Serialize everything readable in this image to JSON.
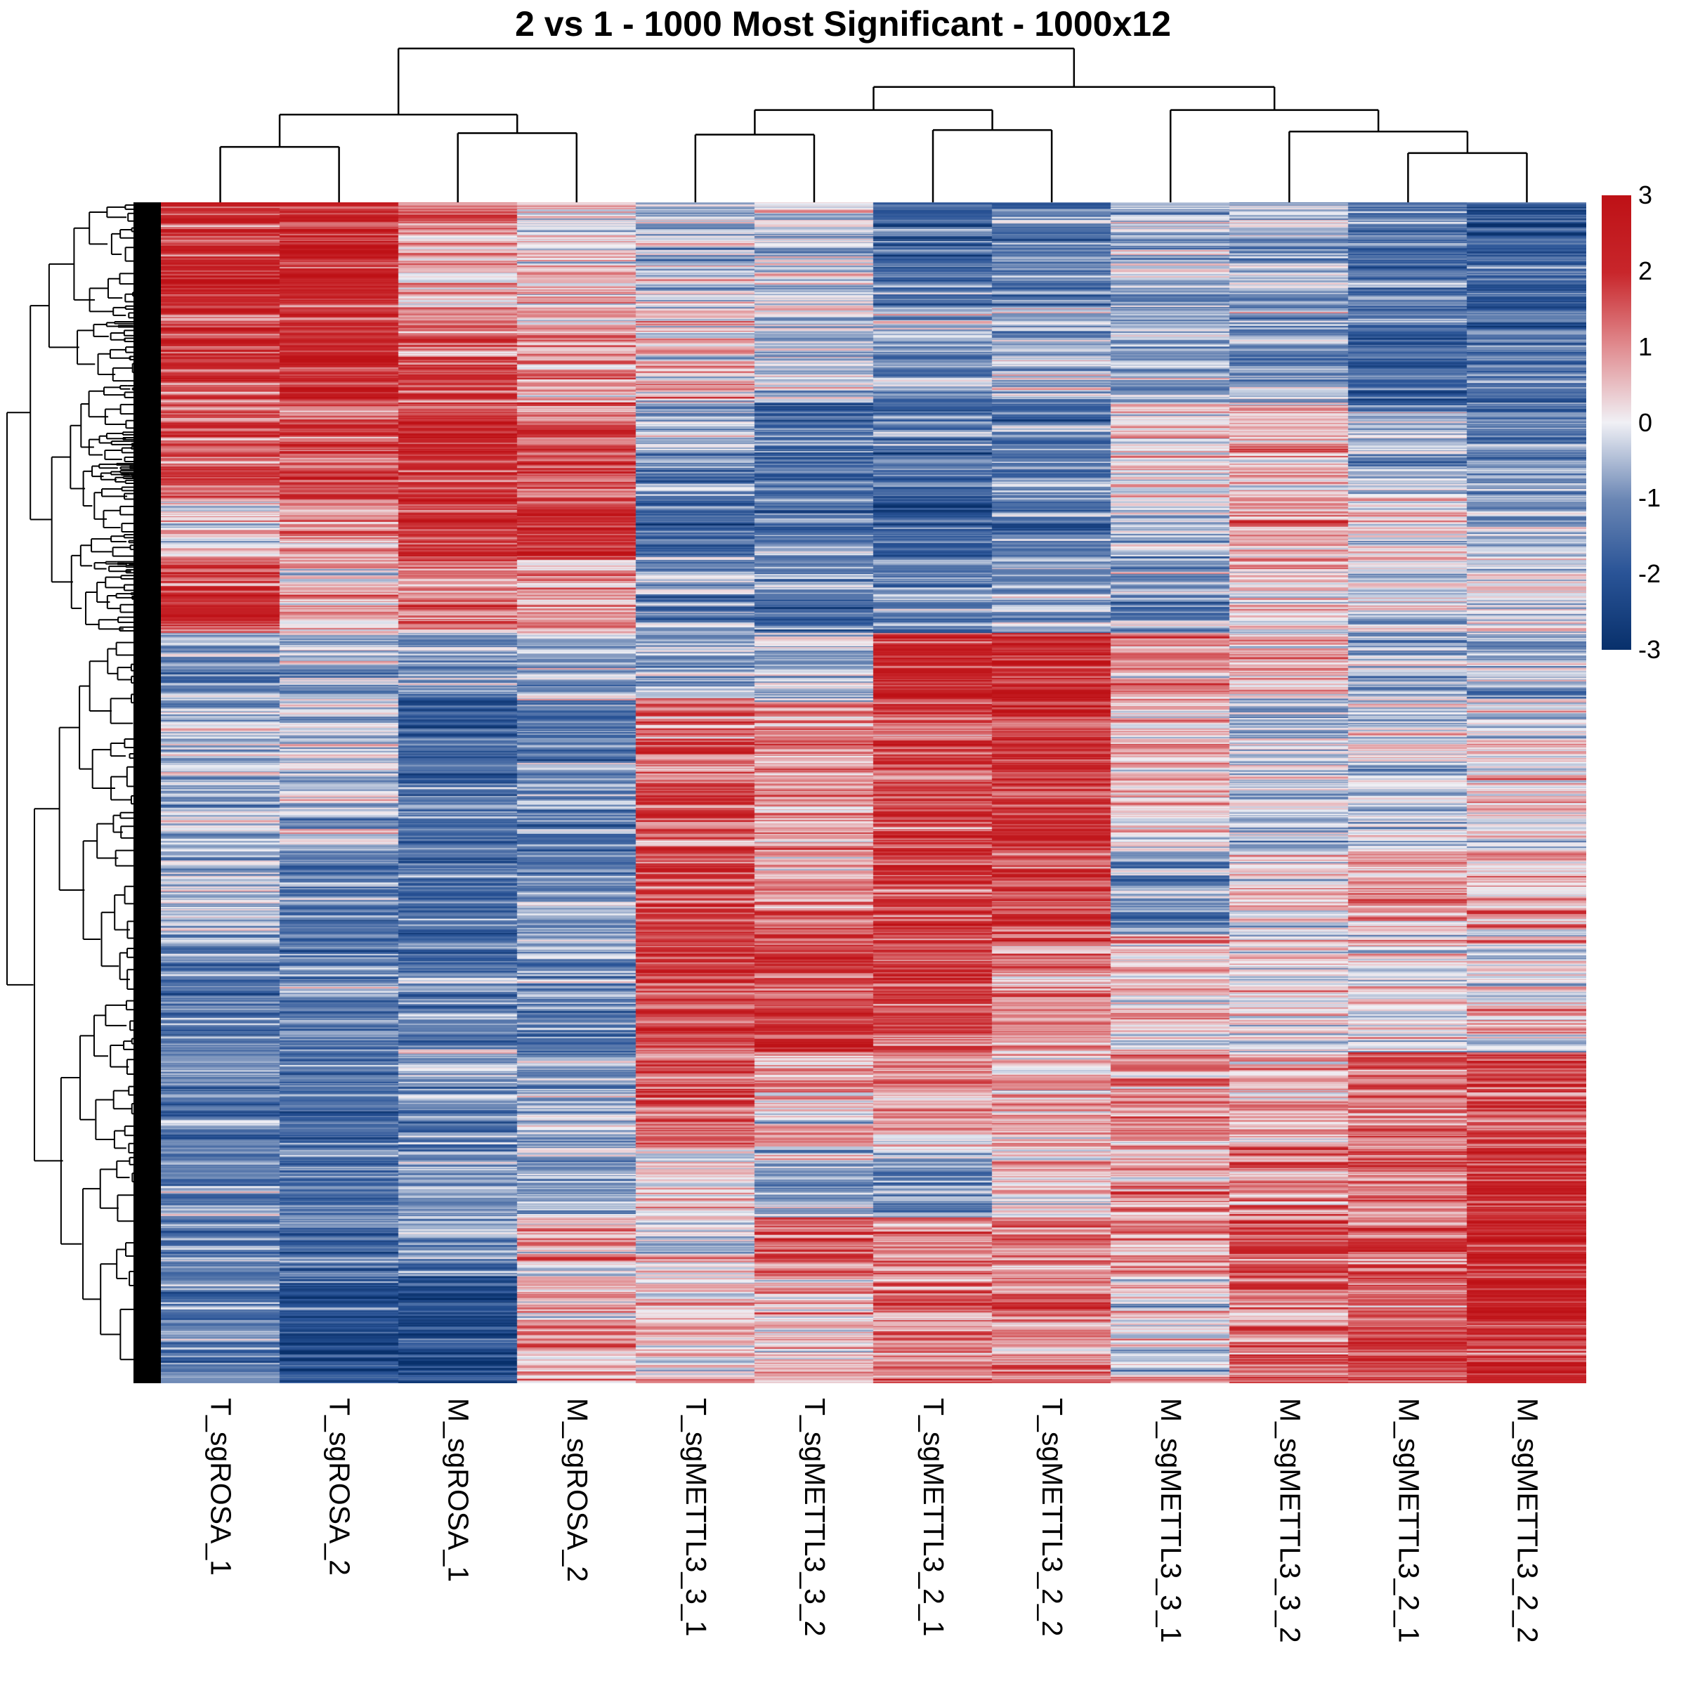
{
  "chart_data": {
    "type": "heatmap",
    "title": "2 vs 1 - 1000 Most Significant - 1000x12",
    "n_rows": 1000,
    "n_cols": 12,
    "columns": [
      "T_sgROSA_1",
      "T_sgROSA_2",
      "M_sgROSA_1",
      "M_sgROSA_2",
      "T_sgMETTL3_3_1",
      "T_sgMETTL3_3_2",
      "T_sgMETTL3_2_1",
      "T_sgMETTL3_2_2",
      "M_sgMETTL3_3_1",
      "M_sgMETTL3_3_2",
      "M_sgMETTL3_2_1",
      "M_sgMETTL3_2_2"
    ],
    "row_labels_shown": false,
    "colorbar": {
      "min": -3,
      "max": 3,
      "ticks": [
        3,
        2,
        1,
        0,
        -1,
        -2,
        -3
      ],
      "colors": {
        "low": "#08306B",
        "mid_low": "#2E569A",
        "mid": "#F0F0F5",
        "mid_high": "#D45A5F",
        "high": "#C0141A"
      }
    },
    "row_blocks_description": "Approximate mean z-score per column within row blocks (row fraction ranges, top to bottom)",
    "row_blocks": [
      {
        "rows": [
          0,
          0.09
        ],
        "means": [
          2.0,
          2.2,
          0.6,
          0.3,
          -0.4,
          -0.1,
          -1.6,
          -1.2,
          -0.6,
          -0.8,
          -1.2,
          -1.8
        ]
      },
      {
        "rows": [
          0.09,
          0.17
        ],
        "means": [
          1.9,
          2.2,
          1.4,
          0.7,
          0.6,
          -0.3,
          -0.6,
          -0.4,
          -0.7,
          -0.9,
          -1.4,
          -1.5
        ]
      },
      {
        "rows": [
          0.17,
          0.25
        ],
        "means": [
          1.6,
          1.8,
          2.2,
          1.5,
          -0.9,
          -1.6,
          -1.5,
          -1.2,
          0.2,
          0.4,
          -0.7,
          -1.0
        ]
      },
      {
        "rows": [
          0.25,
          0.3
        ],
        "means": [
          0.4,
          1.0,
          2.0,
          2.0,
          -1.5,
          -1.3,
          -1.8,
          -1.4,
          -0.3,
          0.8,
          0.2,
          -0.5
        ]
      },
      {
        "rows": [
          0.3,
          0.365
        ],
        "means": [
          1.9,
          0.6,
          1.2,
          0.8,
          -0.8,
          -1.4,
          -1.2,
          -0.9,
          -1.0,
          0.3,
          0.1,
          -0.2
        ]
      },
      {
        "rows": [
          0.365,
          0.42
        ],
        "means": [
          -0.8,
          -0.6,
          -0.8,
          -0.8,
          -0.6,
          -0.3,
          2.3,
          2.4,
          1.0,
          0.6,
          -0.6,
          -0.7
        ]
      },
      {
        "rows": [
          0.42,
          0.55
        ],
        "means": [
          -0.5,
          -0.4,
          -1.6,
          -1.1,
          1.5,
          1.1,
          1.8,
          2.0,
          0.4,
          -0.5,
          -0.2,
          0.2
        ]
      },
      {
        "rows": [
          0.55,
          0.62
        ],
        "means": [
          -0.4,
          -1.2,
          -1.3,
          -1.1,
          1.6,
          1.2,
          1.8,
          1.8,
          -1.0,
          0.3,
          0.5,
          0.6
        ]
      },
      {
        "rows": [
          0.62,
          0.72
        ],
        "means": [
          -1.2,
          -1.0,
          -1.2,
          -1.0,
          1.7,
          1.9,
          1.7,
          1.1,
          0.4,
          0.2,
          0.3,
          0.2
        ]
      },
      {
        "rows": [
          0.72,
          0.8
        ],
        "means": [
          -1.3,
          -1.6,
          -0.8,
          -0.7,
          1.6,
          0.5,
          0.8,
          0.6,
          1.0,
          0.8,
          1.4,
          1.8
        ]
      },
      {
        "rows": [
          0.8,
          0.86
        ],
        "means": [
          -1.1,
          -1.5,
          -0.9,
          -0.6,
          0.3,
          -0.6,
          -0.9,
          0.2,
          0.8,
          1.3,
          1.5,
          2.0
        ]
      },
      {
        "rows": [
          0.86,
          0.91
        ],
        "means": [
          -1.0,
          -1.4,
          -1.1,
          0.6,
          -0.2,
          1.4,
          1.3,
          1.2,
          0.7,
          1.5,
          1.6,
          2.1
        ]
      },
      {
        "rows": [
          0.91,
          1.0
        ],
        "means": [
          -1.2,
          -2.0,
          -2.1,
          0.8,
          0.4,
          0.4,
          1.2,
          1.1,
          0.1,
          1.3,
          1.5,
          2.2
        ]
      }
    ],
    "column_dendrogram": {
      "leaf_order": [
        "T_sgROSA_1",
        "T_sgROSA_2",
        "M_sgROSA_1",
        "M_sgROSA_2",
        "T_sgMETTL3_3_1",
        "T_sgMETTL3_3_2",
        "T_sgMETTL3_2_1",
        "T_sgMETTL3_2_2",
        "M_sgMETTL3_3_1",
        "M_sgMETTL3_3_2",
        "M_sgMETTL3_2_1",
        "M_sgMETTL3_2_2"
      ],
      "merges": [
        {
          "a": 0,
          "b": 1,
          "h": 0.36
        },
        {
          "a": 2,
          "b": 3,
          "h": 0.45
        },
        {
          "a": 4,
          "b": 5,
          "h": 0.44
        },
        {
          "a": 6,
          "b": 7,
          "h": 0.47
        },
        {
          "a": 10,
          "b": 11,
          "h": 0.32
        },
        {
          "a": 9,
          "b": "m5",
          "h": 0.46
        },
        {
          "a": 8,
          "b": "m6",
          "h": 0.6
        },
        {
          "a": "m3",
          "b": "m4",
          "h": 0.6
        },
        {
          "a": "m8",
          "b": "m7",
          "h": 0.75
        },
        {
          "a": "m1",
          "b": "m2",
          "h": 0.57
        },
        {
          "a": "m10",
          "b": "m9",
          "h": 1.0
        }
      ]
    },
    "row_dendrogram": {
      "shown": true,
      "split_fraction": 0.365
    }
  }
}
